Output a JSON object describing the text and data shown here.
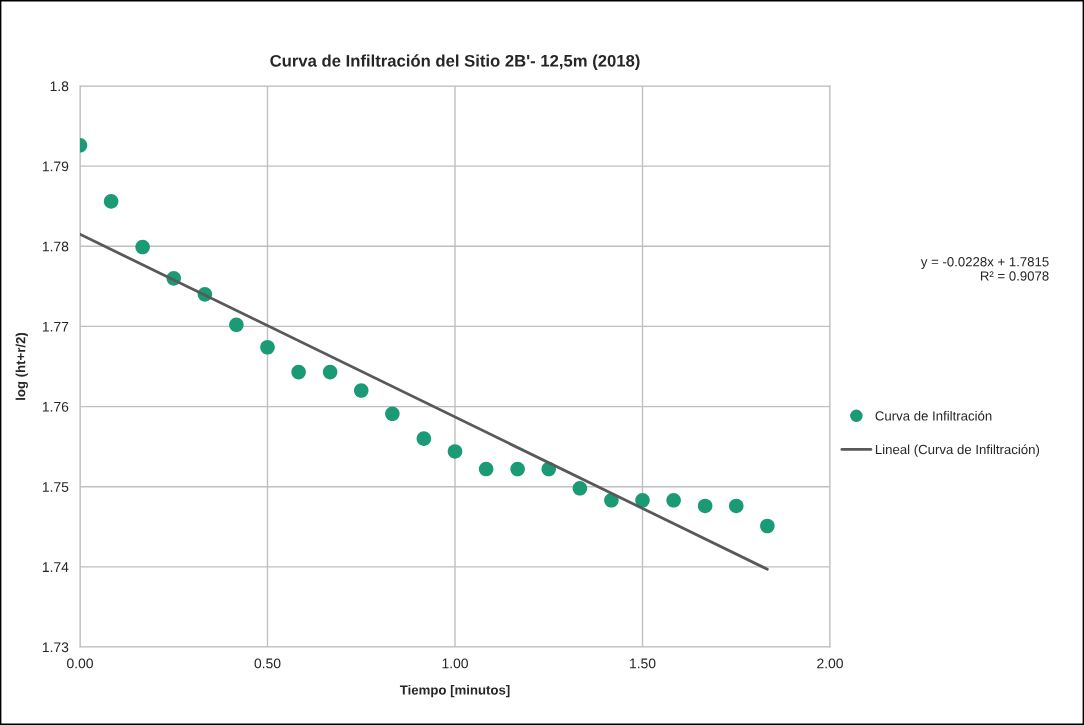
{
  "chart_data": {
    "type": "scatter",
    "title": "Curva de Infiltración del Sitio 2B'- 12,5m (2018)",
    "xlabel": "Tiempo [minutos]",
    "ylabel": "log (ht+r/2)",
    "x": [
      0,
      0.083,
      0.167,
      0.25,
      0.333,
      0.417,
      0.5,
      0.583,
      0.667,
      0.75,
      0.833,
      0.917,
      1.0,
      1.083,
      1.167,
      1.25,
      1.333,
      1.417,
      1.5,
      1.583,
      1.667,
      1.75,
      1.833
    ],
    "series": [
      {
        "name": "Curva de Infiltración",
        "color": "#1a9a75",
        "marker": "circle",
        "values": [
          1.7926,
          1.7856,
          1.7799,
          1.776,
          1.774,
          1.7702,
          1.7674,
          1.7643,
          1.7643,
          1.762,
          1.7591,
          1.756,
          1.7544,
          1.7522,
          1.7522,
          1.7522,
          1.7498,
          1.7483,
          1.7483,
          1.7483,
          1.7476,
          1.7476,
          1.7451
        ]
      },
      {
        "name": "Lineal (Curva de Infiltración)",
        "type": "line",
        "color": "#595959",
        "line_style": "solid",
        "x": [
          0,
          1.833
        ],
        "values": [
          1.7815,
          1.7397
        ]
      }
    ],
    "annotations": [
      "y = -0.0228x + 1.7815\nR² = 0.9078"
    ],
    "xlim": [
      0,
      2
    ],
    "xticks": [
      {
        "value": 0,
        "label": "0.00"
      },
      {
        "value": 0.5,
        "label": "0.50"
      },
      {
        "value": 1,
        "label": "1.00"
      },
      {
        "value": 1.5,
        "label": "1.50"
      },
      {
        "value": 2,
        "label": "2.00"
      }
    ],
    "ylim": [
      1.73,
      1.8
    ],
    "yticks": [
      1.73,
      1.74,
      1.75,
      1.76,
      1.77,
      1.78,
      1.79,
      1.8
    ],
    "grid": true,
    "legend": "right"
  }
}
